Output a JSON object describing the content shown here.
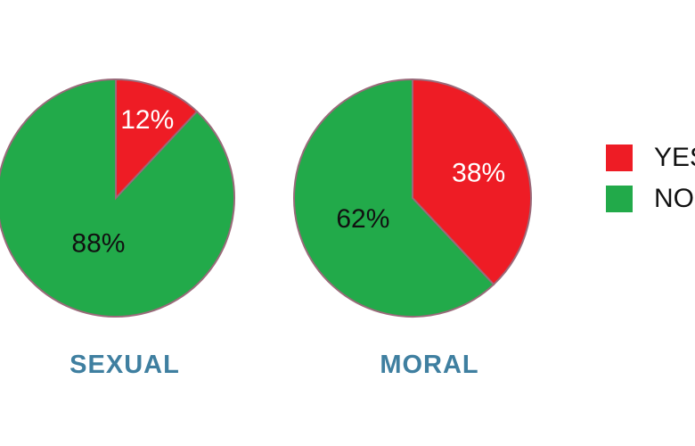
{
  "chart_data": [
    {
      "type": "pie",
      "title": "SEXUAL",
      "labels": [
        "YES",
        "NO"
      ],
      "values": [
        12,
        88
      ],
      "value_labels": [
        "12%",
        "88%"
      ],
      "colors": [
        "#ee1c25",
        "#22aa4a"
      ]
    },
    {
      "type": "pie",
      "title": "MORAL",
      "labels": [
        "YES",
        "NO"
      ],
      "values": [
        38,
        62
      ],
      "value_labels": [
        "38%",
        "62%"
      ],
      "colors": [
        "#ee1c25",
        "#22aa4a"
      ]
    }
  ],
  "legend": {
    "placement": "right",
    "items": [
      {
        "label": "YES",
        "color": "#ee1c25"
      },
      {
        "label": "NO",
        "color": "#22aa4a"
      }
    ]
  },
  "style": {
    "title_color": "#3f7fa0",
    "slice_stroke": "#9a6a7a",
    "label_on_red": "#ffffff",
    "label_on_green": "#111111"
  }
}
